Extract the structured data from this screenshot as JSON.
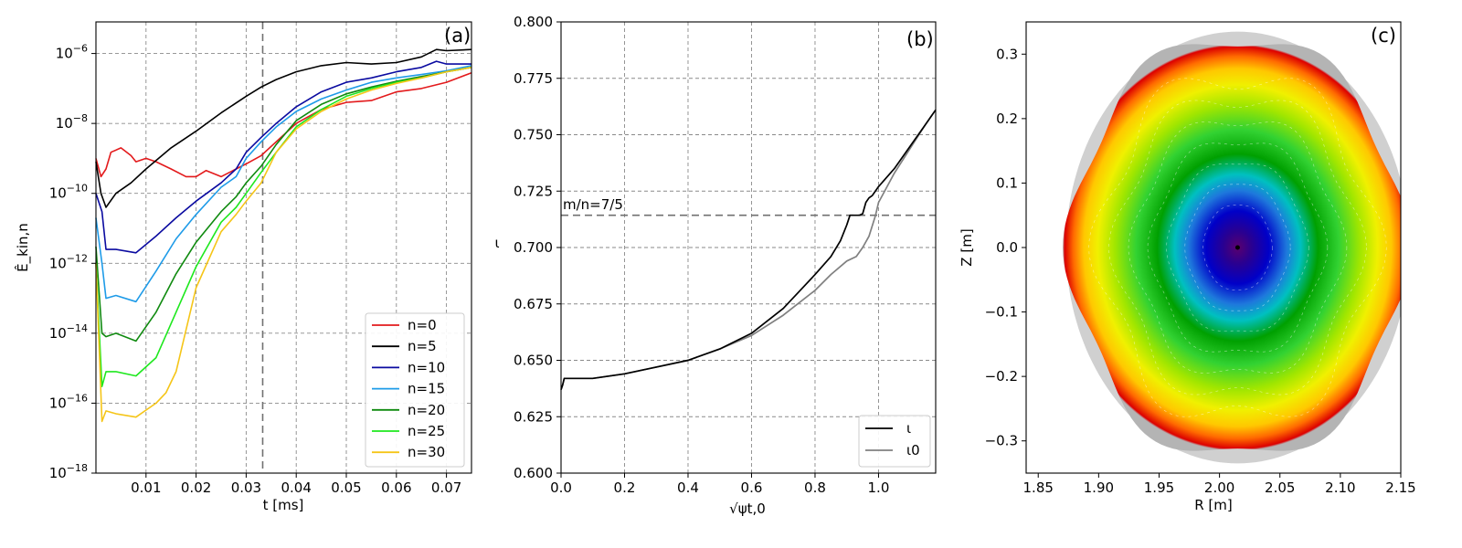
{
  "chart_data": [
    {
      "type": "line",
      "panel_label": "(a)",
      "xlabel": "t [ms]",
      "ylabel": "Ê_kin,n",
      "yscale": "log",
      "xlim": [
        0.0,
        0.075
      ],
      "ylim": [
        1e-18,
        8e-06
      ],
      "xticks": [
        0.01,
        0.02,
        0.03,
        0.04,
        0.05,
        0.06,
        0.07
      ],
      "xtick_labels": [
        "0.01",
        "0.02",
        "0.03",
        "0.04",
        "0.05",
        "0.06",
        "0.07"
      ],
      "yticks": [
        1e-18,
        1e-16,
        1e-14,
        1e-12,
        1e-10,
        1e-08,
        1e-06
      ],
      "ytick_labels": [
        "10",
        "10",
        "10",
        "10",
        "10",
        "10",
        "10"
      ],
      "ytick_exponents": [
        "−18",
        "−16",
        "−14",
        "−12",
        "−10",
        "−8",
        "−6"
      ],
      "vline_x": 0.0333,
      "grid": true,
      "legend_position": "lower-right",
      "series": [
        {
          "name": "n=0",
          "color": "#e31a1c",
          "x": [
            0,
            0.001,
            0.002,
            0.003,
            0.005,
            0.007,
            0.008,
            0.01,
            0.012,
            0.015,
            0.018,
            0.02,
            0.022,
            0.025,
            0.028,
            0.03,
            0.033,
            0.036,
            0.04,
            0.045,
            0.05,
            0.055,
            0.06,
            0.065,
            0.07,
            0.075
          ],
          "y": [
            1e-09,
            3e-10,
            5e-10,
            1.5e-09,
            2e-09,
            1.2e-09,
            8e-10,
            1e-09,
            8e-10,
            5e-10,
            3e-10,
            3e-10,
            4.5e-10,
            3e-10,
            5e-10,
            7e-10,
            1.2e-09,
            3e-09,
            1e-08,
            2.5e-08,
            4e-08,
            4.5e-08,
            8e-08,
            1e-07,
            1.5e-07,
            2.8e-07
          ]
        },
        {
          "name": "n=5",
          "color": "#000000",
          "x": [
            0,
            0.001,
            0.002,
            0.004,
            0.007,
            0.01,
            0.015,
            0.02,
            0.025,
            0.03,
            0.033,
            0.036,
            0.04,
            0.045,
            0.05,
            0.055,
            0.06,
            0.065,
            0.068,
            0.07,
            0.075
          ],
          "y": [
            8e-10,
            1e-10,
            4e-11,
            1e-10,
            2e-10,
            5e-10,
            2e-09,
            6e-09,
            2e-08,
            6e-08,
            1.1e-07,
            1.8e-07,
            3e-07,
            4.5e-07,
            5.5e-07,
            5e-07,
            5.5e-07,
            8e-07,
            1.3e-06,
            1.2e-06,
            1.3e-06
          ]
        },
        {
          "name": "n=10",
          "color": "#0a0aa0",
          "x": [
            0,
            0.0012,
            0.002,
            0.004,
            0.008,
            0.012,
            0.016,
            0.02,
            0.025,
            0.028,
            0.03,
            0.033,
            0.036,
            0.04,
            0.045,
            0.05,
            0.055,
            0.06,
            0.065,
            0.068,
            0.07,
            0.075
          ],
          "y": [
            1e-10,
            3e-11,
            2.5e-12,
            2.5e-12,
            2e-12,
            6e-12,
            2e-11,
            6e-11,
            2e-10,
            5e-10,
            1.5e-09,
            4e-09,
            1e-08,
            3e-08,
            8e-08,
            1.5e-07,
            2e-07,
            3e-07,
            4e-07,
            6e-07,
            5e-07,
            5e-07
          ]
        },
        {
          "name": "n=15",
          "color": "#1e9be8",
          "x": [
            0,
            0.0012,
            0.002,
            0.004,
            0.008,
            0.012,
            0.016,
            0.02,
            0.025,
            0.028,
            0.03,
            0.033,
            0.036,
            0.04,
            0.045,
            0.05,
            0.055,
            0.06,
            0.065,
            0.07,
            0.075
          ],
          "y": [
            2e-11,
            1e-12,
            1e-13,
            1.2e-13,
            8e-14,
            6e-13,
            5e-12,
            2.5e-11,
            1.5e-10,
            3e-10,
            1e-09,
            3e-09,
            8e-09,
            2.2e-08,
            5e-08,
            9e-08,
            1.5e-07,
            2e-07,
            2.5e-07,
            3.2e-07,
            4.5e-07
          ]
        },
        {
          "name": "n=20",
          "color": "#0f8a0f",
          "x": [
            0,
            0.0012,
            0.002,
            0.004,
            0.008,
            0.012,
            0.016,
            0.02,
            0.025,
            0.028,
            0.03,
            0.033,
            0.036,
            0.04,
            0.045,
            0.05,
            0.055,
            0.06,
            0.065,
            0.07,
            0.075
          ],
          "y": [
            3e-12,
            1e-14,
            8e-15,
            1e-14,
            6e-15,
            4e-14,
            5e-13,
            4e-12,
            3e-11,
            8e-11,
            2e-10,
            6e-10,
            2.5e-09,
            1.2e-08,
            3.5e-08,
            7e-08,
            1.1e-07,
            1.6e-07,
            2.2e-07,
            3e-07,
            4e-07
          ]
        },
        {
          "name": "n=25",
          "color": "#1ee81e",
          "x": [
            0,
            0.0012,
            0.002,
            0.004,
            0.008,
            0.012,
            0.016,
            0.02,
            0.025,
            0.028,
            0.03,
            0.033,
            0.036,
            0.04,
            0.045,
            0.05,
            0.055,
            0.06,
            0.065,
            0.07,
            0.075
          ],
          "y": [
            1e-12,
            3e-16,
            8e-16,
            8e-16,
            6e-16,
            2e-15,
            4e-14,
            8e-13,
            1.5e-11,
            4e-11,
            1e-10,
            4e-10,
            1.5e-09,
            8e-09,
            2.5e-08,
            6e-08,
            1e-07,
            1.5e-07,
            2e-07,
            3e-07,
            4e-07
          ]
        },
        {
          "name": "n=30",
          "color": "#f5c518",
          "x": [
            0,
            0.0012,
            0.002,
            0.004,
            0.008,
            0.012,
            0.014,
            0.016,
            0.02,
            0.025,
            0.028,
            0.03,
            0.033,
            0.036,
            0.04,
            0.045,
            0.05,
            0.055,
            0.06,
            0.065,
            0.07,
            0.075
          ],
          "y": [
            1e-12,
            3e-17,
            6e-17,
            5e-17,
            4e-17,
            1e-16,
            2e-16,
            8e-16,
            2e-13,
            8e-12,
            2.5e-11,
            6e-11,
            2e-10,
            1.5e-09,
            7e-09,
            2.2e-08,
            5e-08,
            9e-08,
            1.4e-07,
            2e-07,
            3e-07,
            4e-07
          ]
        }
      ]
    },
    {
      "type": "line",
      "panel_label": "(b)",
      "xlabel": "√ψt,0",
      "ylabel": "ι",
      "xlim": [
        0.0,
        1.18
      ],
      "ylim": [
        0.6,
        0.8
      ],
      "xticks": [
        0.0,
        0.2,
        0.4,
        0.6,
        0.8,
        1.0
      ],
      "xtick_labels": [
        "0.0",
        "0.2",
        "0.4",
        "0.6",
        "0.8",
        "1.0"
      ],
      "yticks": [
        0.6,
        0.625,
        0.65,
        0.675,
        0.7,
        0.725,
        0.75,
        0.775,
        0.8
      ],
      "ytick_labels": [
        "0.600",
        "0.625",
        "0.650",
        "0.675",
        "0.700",
        "0.725",
        "0.750",
        "0.775",
        "0.800"
      ],
      "hline_y": 0.7143,
      "hline_label": "m/n=7/5",
      "grid": true,
      "legend_position": "lower-right",
      "series": [
        {
          "name": "ι",
          "color": "#000000",
          "x": [
            0,
            0.005,
            0.01,
            0.02,
            0.1,
            0.2,
            0.3,
            0.4,
            0.5,
            0.6,
            0.7,
            0.8,
            0.85,
            0.88,
            0.9,
            0.91,
            0.92,
            0.93,
            0.94,
            0.95,
            0.96,
            0.97,
            0.98,
            1.0,
            1.05,
            1.1,
            1.15,
            1.18
          ],
          "y": [
            0.637,
            0.639,
            0.642,
            0.642,
            0.642,
            0.644,
            0.647,
            0.65,
            0.655,
            0.662,
            0.673,
            0.688,
            0.696,
            0.703,
            0.71,
            0.7143,
            0.7143,
            0.7143,
            0.7143,
            0.715,
            0.72,
            0.722,
            0.723,
            0.727,
            0.735,
            0.745,
            0.755,
            0.761
          ]
        },
        {
          "name": "ι0",
          "color": "#808080",
          "x": [
            0,
            0.005,
            0.01,
            0.02,
            0.1,
            0.2,
            0.3,
            0.4,
            0.5,
            0.6,
            0.7,
            0.8,
            0.85,
            0.9,
            0.93,
            0.95,
            0.97,
            0.99,
            1.0,
            1.05,
            1.1,
            1.15,
            1.18
          ],
          "y": [
            0.637,
            0.639,
            0.642,
            0.642,
            0.642,
            0.644,
            0.647,
            0.65,
            0.655,
            0.661,
            0.67,
            0.681,
            0.688,
            0.694,
            0.696,
            0.7,
            0.705,
            0.714,
            0.72,
            0.733,
            0.744,
            0.755,
            0.761
          ]
        }
      ]
    },
    {
      "type": "scatter",
      "panel_label": "(c)",
      "xlabel": "R [m]",
      "ylabel": "Z [m]",
      "xlim": [
        1.84,
        2.15
      ],
      "ylim": [
        -0.35,
        0.35
      ],
      "xticks": [
        1.85,
        1.9,
        1.95,
        2.0,
        2.05,
        2.1,
        2.15
      ],
      "xtick_labels": [
        "1.85",
        "1.90",
        "1.95",
        "2.00",
        "2.05",
        "2.10",
        "2.15"
      ],
      "yticks": [
        -0.3,
        -0.2,
        -0.1,
        0.0,
        0.1,
        0.2,
        0.3
      ],
      "ytick_labels": [
        "−0.3",
        "−0.2",
        "−0.1",
        "0.0",
        "0.1",
        "0.2",
        "0.3"
      ],
      "axis_center": [
        2.015,
        0.0
      ],
      "semi_axes": [
        0.142,
        0.335
      ],
      "grid": false,
      "colormap": [
        "#5a006e",
        "#0000c8",
        "#1e78dc",
        "#00c8c8",
        "#00a000",
        "#32d232",
        "#96e600",
        "#f0f000",
        "#ffc800",
        "#ff8c00",
        "#dc0000",
        "#a0a0a0"
      ]
    }
  ]
}
